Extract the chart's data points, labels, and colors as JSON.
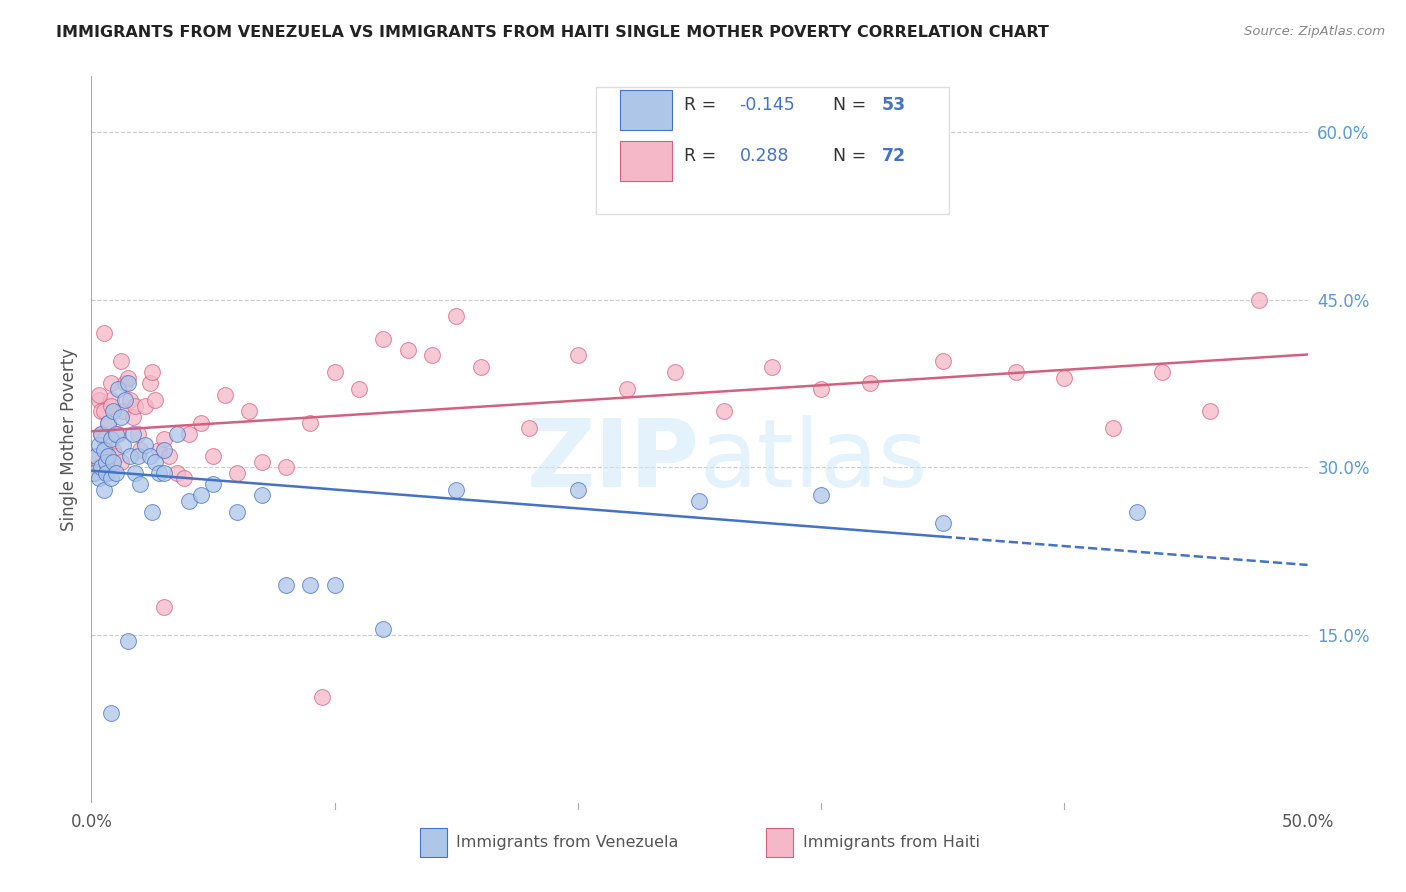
{
  "title": "IMMIGRANTS FROM VENEZUELA VS IMMIGRANTS FROM HAITI SINGLE MOTHER POVERTY CORRELATION CHART",
  "source": "Source: ZipAtlas.com",
  "ylabel": "Single Mother Poverty",
  "ylabel_right_ticks": [
    "15.0%",
    "30.0%",
    "45.0%",
    "60.0%"
  ],
  "ylabel_right_vals": [
    0.15,
    0.3,
    0.45,
    0.6
  ],
  "xlim": [
    0.0,
    0.5
  ],
  "ylim": [
    0.0,
    0.65
  ],
  "R_venezuela": -0.145,
  "N_venezuela": 53,
  "R_haiti": 0.288,
  "N_haiti": 72,
  "color_venezuela": "#aec6e8",
  "color_haiti": "#f4b8c8",
  "line_color_venezuela": "#4472c4",
  "line_color_haiti": "#d46080",
  "background_color": "#ffffff",
  "venezuela_x": [
    0.001,
    0.002,
    0.003,
    0.003,
    0.004,
    0.004,
    0.005,
    0.005,
    0.006,
    0.006,
    0.007,
    0.007,
    0.008,
    0.008,
    0.009,
    0.009,
    0.01,
    0.01,
    0.011,
    0.012,
    0.013,
    0.014,
    0.015,
    0.016,
    0.017,
    0.018,
    0.019,
    0.02,
    0.022,
    0.024,
    0.026,
    0.028,
    0.03,
    0.035,
    0.04,
    0.045,
    0.05,
    0.06,
    0.07,
    0.08,
    0.09,
    0.1,
    0.12,
    0.15,
    0.2,
    0.25,
    0.3,
    0.35,
    0.03,
    0.025,
    0.015,
    0.008,
    0.43
  ],
  "venezuela_y": [
    0.295,
    0.31,
    0.32,
    0.29,
    0.33,
    0.3,
    0.315,
    0.28,
    0.305,
    0.295,
    0.34,
    0.31,
    0.325,
    0.29,
    0.35,
    0.305,
    0.33,
    0.295,
    0.37,
    0.345,
    0.32,
    0.36,
    0.375,
    0.31,
    0.33,
    0.295,
    0.31,
    0.285,
    0.32,
    0.31,
    0.305,
    0.295,
    0.315,
    0.33,
    0.27,
    0.275,
    0.285,
    0.26,
    0.275,
    0.195,
    0.195,
    0.195,
    0.155,
    0.28,
    0.28,
    0.27,
    0.275,
    0.25,
    0.295,
    0.26,
    0.145,
    0.08,
    0.26
  ],
  "haiti_x": [
    0.001,
    0.002,
    0.003,
    0.003,
    0.004,
    0.004,
    0.005,
    0.005,
    0.006,
    0.006,
    0.007,
    0.007,
    0.008,
    0.008,
    0.009,
    0.01,
    0.011,
    0.012,
    0.013,
    0.014,
    0.015,
    0.016,
    0.017,
    0.018,
    0.019,
    0.02,
    0.022,
    0.024,
    0.026,
    0.028,
    0.03,
    0.032,
    0.035,
    0.038,
    0.04,
    0.045,
    0.05,
    0.055,
    0.06,
    0.065,
    0.07,
    0.08,
    0.09,
    0.1,
    0.11,
    0.12,
    0.13,
    0.14,
    0.15,
    0.16,
    0.18,
    0.2,
    0.22,
    0.24,
    0.26,
    0.28,
    0.3,
    0.32,
    0.35,
    0.38,
    0.4,
    0.42,
    0.44,
    0.46,
    0.48,
    0.008,
    0.012,
    0.025,
    0.003,
    0.005,
    0.095,
    0.03
  ],
  "haiti_y": [
    0.295,
    0.31,
    0.36,
    0.3,
    0.33,
    0.35,
    0.325,
    0.35,
    0.315,
    0.305,
    0.295,
    0.34,
    0.36,
    0.375,
    0.315,
    0.31,
    0.33,
    0.305,
    0.35,
    0.375,
    0.38,
    0.36,
    0.345,
    0.355,
    0.33,
    0.315,
    0.355,
    0.375,
    0.36,
    0.315,
    0.325,
    0.31,
    0.295,
    0.29,
    0.33,
    0.34,
    0.31,
    0.365,
    0.295,
    0.35,
    0.305,
    0.3,
    0.34,
    0.385,
    0.37,
    0.415,
    0.405,
    0.4,
    0.435,
    0.39,
    0.335,
    0.4,
    0.37,
    0.385,
    0.35,
    0.39,
    0.37,
    0.375,
    0.395,
    0.385,
    0.38,
    0.335,
    0.385,
    0.35,
    0.45,
    0.355,
    0.395,
    0.385,
    0.365,
    0.42,
    0.095,
    0.175
  ]
}
